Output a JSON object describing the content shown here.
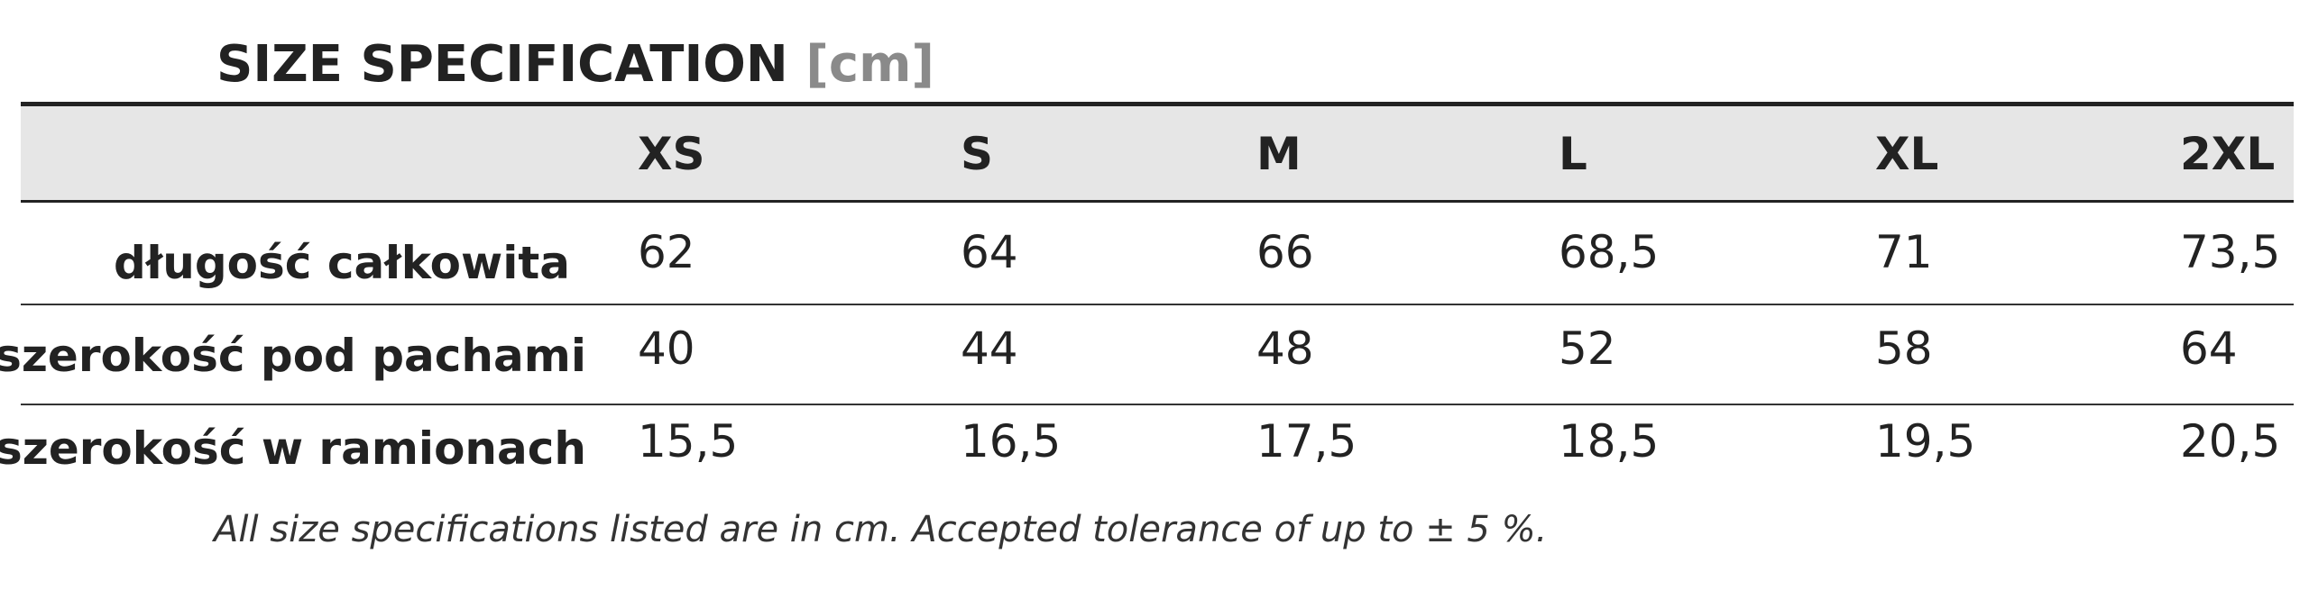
{
  "title": {
    "text": "SIZE SPECIFICATION",
    "unit": "[cm]"
  },
  "table": {
    "header": [
      "XS",
      "S",
      "M",
      "L",
      "XL",
      "2XL"
    ],
    "rows": [
      [
        "długość całkowita",
        "62",
        "64",
        "66",
        "68,5",
        "71",
        "73,5"
      ],
      [
        "szerokość pod pachami",
        "40",
        "44",
        "48",
        "52",
        "58",
        "64"
      ],
      [
        "szerokość w ramionach",
        "15,5",
        "16,5",
        "17,5",
        "18,5",
        "19,5",
        "20,5"
      ]
    ]
  },
  "footnote": "All size specifications listed are in cm. Accepted tolerance of up to ± 5 %."
}
